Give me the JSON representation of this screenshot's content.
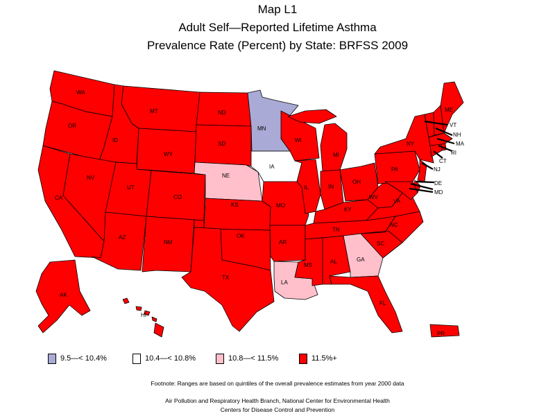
{
  "title": {
    "line1": "Map L1",
    "line2": "Adult Self—Reported Lifetime Asthma",
    "line3": "Prevalence Rate (Percent) by State: BRFSS 2009"
  },
  "colors": {
    "q1": "#aaaad6",
    "q2": "#ffffff",
    "q3": "#ffc0cb",
    "q4": "#ff0000",
    "outline": "#000000"
  },
  "legend": [
    {
      "label": "9.5—< 10.4%",
      "color": "#aaaad6"
    },
    {
      "label": "10.4—< 10.8%",
      "color": "#ffffff"
    },
    {
      "label": "10.8—< 11.5%",
      "color": "#ffc0cb"
    },
    {
      "label": "11.5%+",
      "color": "#ff0000"
    }
  ],
  "states": {
    "WA": {
      "label": "WA",
      "category": "11.5%+"
    },
    "OR": {
      "label": "OR",
      "category": "11.5%+"
    },
    "CA": {
      "label": "CA",
      "category": "11.5%+"
    },
    "ID": {
      "label": "ID",
      "category": "11.5%+"
    },
    "NV": {
      "label": "NV",
      "category": "11.5%+"
    },
    "MT": {
      "label": "MT",
      "category": "11.5%+"
    },
    "WY": {
      "label": "WY",
      "category": "11.5%+"
    },
    "UT": {
      "label": "UT",
      "category": "11.5%+"
    },
    "AZ": {
      "label": "AZ",
      "category": "11.5%+"
    },
    "CO": {
      "label": "CO",
      "category": "11.5%+"
    },
    "NM": {
      "label": "NM",
      "category": "11.5%+"
    },
    "ND": {
      "label": "ND",
      "category": "11.5%+"
    },
    "SD": {
      "label": "SD",
      "category": "11.5%+"
    },
    "NE": {
      "label": "NE",
      "category": "10.8—< 11.5%"
    },
    "KS": {
      "label": "KS",
      "category": "11.5%+"
    },
    "OK": {
      "label": "OK",
      "category": "11.5%+"
    },
    "TX": {
      "label": "TX",
      "category": "11.5%+"
    },
    "MN": {
      "label": "MN",
      "category": "9.5—< 10.4%"
    },
    "IA": {
      "label": "IA",
      "category": "10.4—< 10.8%"
    },
    "MO": {
      "label": "MO",
      "category": "11.5%+"
    },
    "AR": {
      "label": "AR",
      "category": "11.5%+"
    },
    "LA": {
      "label": "LA",
      "category": "10.8—< 11.5%"
    },
    "WI": {
      "label": "WI",
      "category": "11.5%+"
    },
    "IL": {
      "label": "IL",
      "category": "11.5%+"
    },
    "MI": {
      "label": "MI",
      "category": "11.5%+"
    },
    "IN": {
      "label": "IN",
      "category": "11.5%+"
    },
    "OH": {
      "label": "OH",
      "category": "11.5%+"
    },
    "KY": {
      "label": "KY",
      "category": "11.5%+"
    },
    "TN": {
      "label": "TN",
      "category": "11.5%+"
    },
    "MS": {
      "label": "MS",
      "category": "11.5%+"
    },
    "AL": {
      "label": "AL",
      "category": "11.5%+"
    },
    "GA": {
      "label": "GA",
      "category": "10.8—< 11.5%"
    },
    "FL": {
      "label": "FL",
      "category": "11.5%+"
    },
    "SC": {
      "label": "SC",
      "category": "11.5%+"
    },
    "NC": {
      "label": "NC",
      "category": "11.5%+"
    },
    "VA": {
      "label": "VA",
      "category": "11.5%+"
    },
    "WV": {
      "label": "WV",
      "category": "11.5%+"
    },
    "PA": {
      "label": "PA",
      "category": "11.5%+"
    },
    "NY": {
      "label": "NY",
      "category": "11.5%+"
    },
    "ME": {
      "label": "ME",
      "category": "11.5%+"
    },
    "VT": {
      "label": "VT",
      "category": "11.5%+"
    },
    "NH": {
      "label": "NH",
      "category": "11.5%+"
    },
    "MA": {
      "label": "MA",
      "category": "11.5%+"
    },
    "RI": {
      "label": "RI",
      "category": "11.5%+"
    },
    "CT": {
      "label": "CT",
      "category": "11.5%+"
    },
    "NJ": {
      "label": "NJ",
      "category": "11.5%+"
    },
    "DE": {
      "label": "DE",
      "category": "11.5%+"
    },
    "MD": {
      "label": "MD",
      "category": "11.5%+"
    },
    "AK": {
      "label": "AK",
      "category": "11.5%+"
    },
    "HI": {
      "label": "HI",
      "category": "11.5%+"
    },
    "PR": {
      "label": "PR",
      "category": "11.5%+"
    }
  },
  "footnote": "Footnote: Ranges are based on quintiles of the overall prevalence estimates from year 2000 data",
  "source": {
    "line1": "Air Pollution and Respiratory Health Branch, National Center for Environmental Health",
    "line2": "Centers for Disease Control and Prevention"
  }
}
